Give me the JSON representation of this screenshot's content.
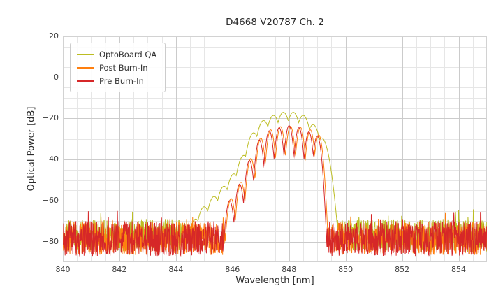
{
  "figure": {
    "background": "#ffffff",
    "text_color": "#262626"
  },
  "chart_data": {
    "type": "line",
    "title": "D4668 V20787 Ch. 2",
    "xlabel": "Wavelength [nm]",
    "ylabel": "Optical Power [dB]",
    "xlim": [
      840,
      855
    ],
    "ylim": [
      -90,
      20
    ],
    "xticks": [
      840,
      842,
      844,
      846,
      848,
      850,
      852,
      854
    ],
    "yticks": [
      20,
      0,
      -20,
      -40,
      -60,
      -80
    ],
    "x_minor_step_nm": 0.5,
    "y_minor_step_db": 5,
    "grid": {
      "on": true,
      "major_color": "#cbcbcb",
      "minor_color": "#e6e6e6",
      "frame_color": "#d2d2d2"
    },
    "legend": {
      "position": "upper-left"
    },
    "sample_step_nm": 0.01,
    "series": [
      {
        "name": "OptoBoard QA",
        "color": "#bcbd22",
        "seed": 101,
        "noise_floor_db": {
          "mean": -77,
          "spread": 8
        },
        "mode_width_nm": 0.085,
        "peaks": [
          [
            844.4,
            -74
          ],
          [
            844.7,
            -69
          ],
          [
            845.0,
            -63
          ],
          [
            845.35,
            -58
          ],
          [
            845.7,
            -53
          ],
          [
            846.05,
            -47
          ],
          [
            846.4,
            -38
          ],
          [
            846.75,
            -27
          ],
          [
            847.1,
            -21
          ],
          [
            847.45,
            -18.5
          ],
          [
            847.8,
            -17
          ],
          [
            848.15,
            -17
          ],
          [
            848.5,
            -18.5
          ],
          [
            848.85,
            -23
          ],
          [
            849.15,
            -29.5
          ]
        ]
      },
      {
        "name": "Post Burn-In",
        "color": "#ff7f0e",
        "seed": 202,
        "noise_floor_db": {
          "mean": -78.5,
          "spread": 8
        },
        "mode_width_nm": 0.046,
        "peaks": [
          [
            845.95,
            -59
          ],
          [
            846.3,
            -51
          ],
          [
            846.65,
            -39.5
          ],
          [
            847.0,
            -29.5
          ],
          [
            847.35,
            -25.5
          ],
          [
            847.7,
            -24
          ],
          [
            848.05,
            -23.8
          ],
          [
            848.4,
            -24.3
          ],
          [
            848.75,
            -25.5
          ],
          [
            849.05,
            -28
          ]
        ]
      },
      {
        "name": "Pre Burn-In",
        "color": "#d62728",
        "seed": 303,
        "noise_floor_db": {
          "mean": -78.5,
          "spread": 8.5
        },
        "mode_width_nm": 0.046,
        "peaks": [
          [
            845.9,
            -60
          ],
          [
            846.25,
            -52
          ],
          [
            846.6,
            -40.5
          ],
          [
            846.95,
            -30.5
          ],
          [
            847.3,
            -26
          ],
          [
            847.65,
            -24.5
          ],
          [
            848.0,
            -23.5
          ],
          [
            848.35,
            -24.5
          ],
          [
            848.7,
            -26.5
          ],
          [
            849.0,
            -28.5
          ]
        ]
      }
    ]
  }
}
